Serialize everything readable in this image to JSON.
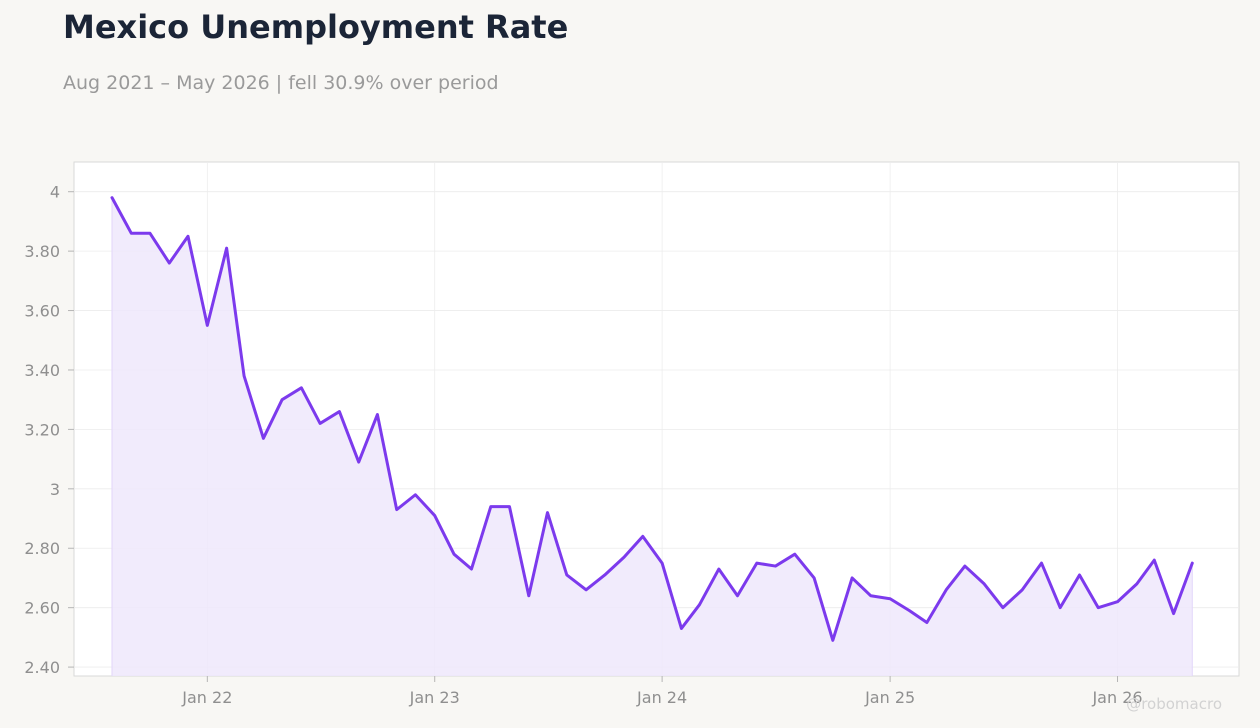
{
  "header": {
    "title": "Mexico Unemployment Rate",
    "subtitle": "Aug 2021 – May 2026 | fell 30.9% over period"
  },
  "watermark": "@robomacro",
  "colors": {
    "background": "#f8f7f4",
    "plot_background": "#ffffff",
    "line": "#7c3aed",
    "fill": "#efe8fc",
    "grid": "#ececec",
    "tick_text": "#8f8f8f",
    "title_text": "#1b2537",
    "subtitle_text": "#9a9a9a"
  },
  "chart_data": {
    "type": "area",
    "title": "Mexico Unemployment Rate",
    "subtitle": "Aug 2021 – May 2026 | fell 30.9% over period",
    "xlabel": "",
    "ylabel": "",
    "ylim": [
      2.37,
      4.1
    ],
    "xlim": [
      "2021-06-01",
      "2026-07-15"
    ],
    "grid": true,
    "legend": "none",
    "y_ticks": [
      {
        "value": 2.4,
        "label": "2.40"
      },
      {
        "value": 2.6,
        "label": "2.60"
      },
      {
        "value": 2.8,
        "label": "2.80"
      },
      {
        "value": 3.0,
        "label": "3"
      },
      {
        "value": 3.2,
        "label": "3.20"
      },
      {
        "value": 3.4,
        "label": "3.40"
      },
      {
        "value": 3.6,
        "label": "3.60"
      },
      {
        "value": 3.8,
        "label": "3.80"
      },
      {
        "value": 4.0,
        "label": "4"
      }
    ],
    "x_ticks": [
      {
        "date": "2022-01-01",
        "label": "Jan 22"
      },
      {
        "date": "2023-01-01",
        "label": "Jan 23"
      },
      {
        "date": "2024-01-01",
        "label": "Jan 24"
      },
      {
        "date": "2025-01-01",
        "label": "Jan 25"
      },
      {
        "date": "2026-01-01",
        "label": "Jan 26"
      }
    ],
    "series": [
      {
        "dates": [
          "2021-08-01",
          "2021-09-01",
          "2021-10-01",
          "2021-11-01",
          "2021-12-01",
          "2022-01-01",
          "2022-02-01",
          "2022-03-01",
          "2022-04-01",
          "2022-05-01",
          "2022-06-01",
          "2022-07-01",
          "2022-08-01",
          "2022-09-01",
          "2022-10-01",
          "2022-11-01",
          "2022-12-01",
          "2023-01-01",
          "2023-02-01",
          "2023-03-01",
          "2023-04-01",
          "2023-05-01",
          "2023-06-01",
          "2023-07-01",
          "2023-08-01",
          "2023-09-01",
          "2023-10-01",
          "2023-11-01",
          "2023-12-01",
          "2024-01-01",
          "2024-02-01",
          "2024-03-01",
          "2024-04-01",
          "2024-05-01",
          "2024-06-01",
          "2024-07-01",
          "2024-08-01",
          "2024-09-01",
          "2024-10-01",
          "2024-11-01",
          "2024-12-01",
          "2025-01-01",
          "2025-02-01",
          "2025-03-01",
          "2025-04-01",
          "2025-05-01",
          "2025-06-01",
          "2025-07-01",
          "2025-08-01",
          "2025-09-01",
          "2025-10-01",
          "2025-11-01",
          "2025-12-01",
          "2026-01-01",
          "2026-02-01",
          "2026-03-01",
          "2026-04-01",
          "2026-05-01"
        ],
        "values": [
          3.98,
          3.86,
          3.86,
          3.76,
          3.85,
          3.55,
          3.81,
          3.38,
          3.17,
          3.3,
          3.34,
          3.22,
          3.26,
          3.09,
          3.25,
          2.93,
          2.98,
          2.91,
          2.78,
          2.73,
          2.94,
          2.94,
          2.64,
          2.92,
          2.71,
          2.66,
          2.71,
          2.77,
          2.84,
          2.75,
          2.53,
          2.61,
          2.73,
          2.64,
          2.75,
          2.74,
          2.78,
          2.7,
          2.49,
          2.7,
          2.64,
          2.63,
          2.59,
          2.55,
          2.66,
          2.74,
          2.68,
          2.6,
          2.66,
          2.75,
          2.6,
          2.71,
          2.6,
          2.62,
          2.68,
          2.76,
          2.58,
          2.75
        ]
      }
    ]
  }
}
